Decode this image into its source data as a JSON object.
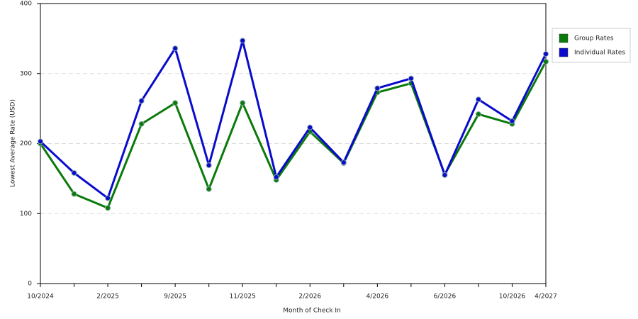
{
  "chart_data": {
    "type": "line",
    "x_label": "Month of Check In",
    "y_label": "Lowest Average Rate (USD)",
    "categories": [
      "10/2024",
      null,
      "2/2025",
      null,
      "9/2025",
      null,
      "11/2025",
      null,
      "2/2026",
      null,
      "4/2026",
      null,
      "6/2026",
      null,
      "10/2026",
      "4/2027"
    ],
    "series": [
      {
        "name": "Group Rates",
        "color": "#0a7a0a",
        "values": [
          200,
          128,
          108,
          228,
          258,
          135,
          258,
          148,
          217,
          172,
          273,
          286,
          156,
          242,
          228,
          317
        ]
      },
      {
        "name": "Individual Rates",
        "color": "#0a0acc",
        "values": [
          203,
          158,
          122,
          261,
          336,
          169,
          347,
          152,
          223,
          173,
          279,
          293,
          155,
          263,
          232,
          328
        ]
      }
    ],
    "ylim": [
      0,
      400
    ],
    "yticks": [
      0,
      100,
      200,
      300,
      400
    ],
    "grid": true,
    "legend": "right"
  }
}
